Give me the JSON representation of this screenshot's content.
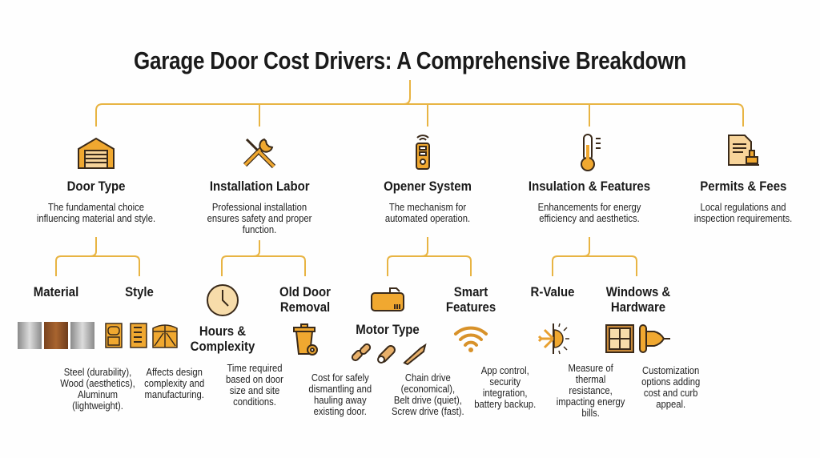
{
  "title": "Garage Door Cost Drivers: A Comprehensive Breakdown",
  "colors": {
    "line": "#e8b443",
    "icon_fill": "#f0a830",
    "icon_outline": "#3a2a1a"
  },
  "categories": [
    {
      "heading": "Door Type",
      "description": [
        "The fundamental choice",
        "influencing material and style."
      ],
      "icon": "garage-icon"
    },
    {
      "heading": "Installation Labor",
      "description": [
        "Professional installation",
        "ensures safety and proper",
        "function."
      ],
      "icon": "tools-icon"
    },
    {
      "heading": "Opener System",
      "description": [
        "The mechanism for",
        "automated operation."
      ],
      "icon": "remote-icon"
    },
    {
      "heading": "Insulation & Features",
      "description": [
        "Enhancements for energy",
        "efficiency and aesthetics."
      ],
      "icon": "thermometer-icon"
    },
    {
      "heading": "Permits & Fees",
      "description": [
        "Local regulations and",
        "inspection requirements."
      ],
      "icon": "permit-document-icon"
    }
  ],
  "subcategories": [
    {
      "heading": [
        "Material"
      ],
      "description": [
        "Steel (durability),",
        "Wood (aesthetics),",
        "Aluminum",
        "(lightweight)."
      ],
      "icon": "material-swatches-icon"
    },
    {
      "heading": [
        "Style"
      ],
      "description": [
        "Affects design",
        "complexity and",
        "manufacturing."
      ],
      "icon": "door-styles-icon"
    },
    {
      "heading": [
        "Hours &",
        "Complexity"
      ],
      "description": [
        "Time required",
        "based on door",
        "size and site",
        "conditions."
      ],
      "icon": "clock-icon"
    },
    {
      "heading": [
        "Old Door",
        "Removal"
      ],
      "description": [
        "Cost for safely",
        "dismantling and",
        "hauling away",
        "existing door."
      ],
      "icon": "trash-can-icon"
    },
    {
      "heading": [
        "Motor Type"
      ],
      "description": [
        "Chain drive",
        "(economical),",
        "Belt drive (quiet),",
        "Screw drive (fast)."
      ],
      "icon": "motor-icon"
    },
    {
      "heading": [
        "Smart",
        "Features"
      ],
      "description": [
        "App control,",
        "security",
        "integration,",
        "battery backup."
      ],
      "icon": "wifi-icon"
    },
    {
      "heading": [
        "R-Value"
      ],
      "description": [
        "Measure of",
        "thermal",
        "resistance,",
        "impacting energy",
        "bills."
      ],
      "icon": "snowflake-sun-icon"
    },
    {
      "heading": [
        "Windows &",
        "Hardware"
      ],
      "description": [
        "Customization",
        "options adding",
        "cost and curb",
        "appeal."
      ],
      "icon": "window-hinge-icon"
    }
  ]
}
